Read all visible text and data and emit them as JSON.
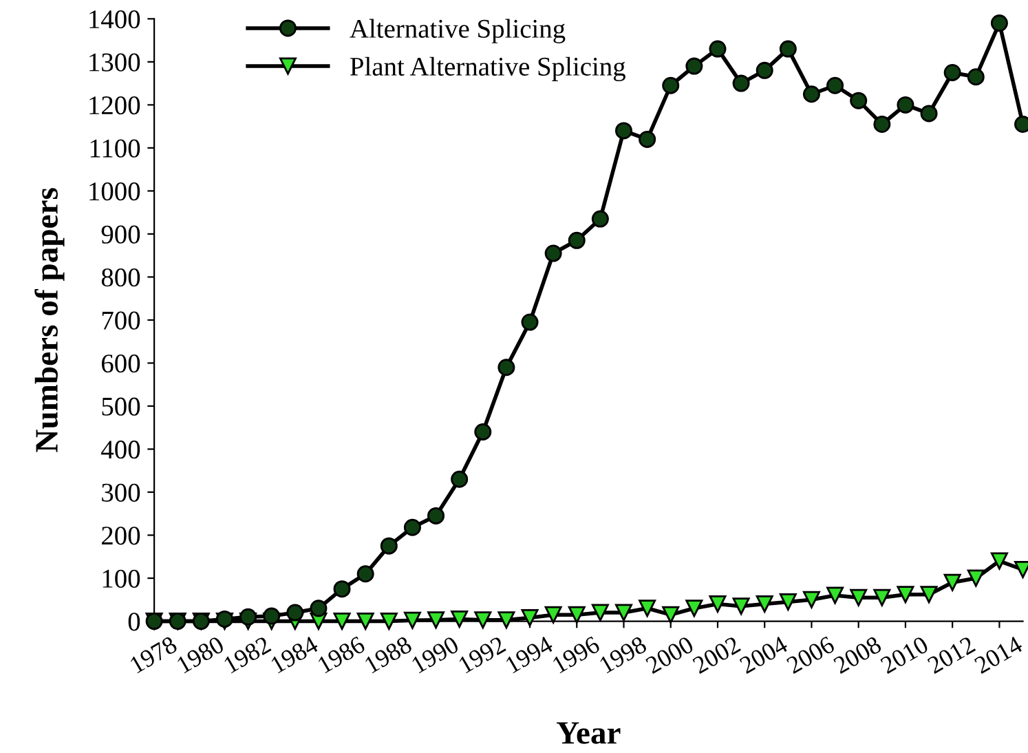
{
  "chart_data": {
    "type": "line",
    "xlabel": "Year",
    "ylabel": "Numbers of papers",
    "x": [
      1978,
      1979,
      1980,
      1981,
      1982,
      1983,
      1984,
      1985,
      1986,
      1987,
      1988,
      1989,
      1990,
      1991,
      1992,
      1993,
      1994,
      1995,
      1996,
      1997,
      1998,
      1999,
      2000,
      2001,
      2002,
      2003,
      2004,
      2005,
      2006,
      2007,
      2008,
      2009,
      2010,
      2011,
      2012,
      2013,
      2014,
      2015
    ],
    "series": [
      {
        "name": "Alternative Splicing",
        "color": "#0f3d12",
        "marker": "circle",
        "values": [
          0,
          0,
          0,
          5,
          10,
          12,
          20,
          30,
          75,
          110,
          175,
          218,
          245,
          330,
          440,
          590,
          695,
          855,
          885,
          935,
          1140,
          1120,
          1245,
          1290,
          1330,
          1250,
          1280,
          1330,
          1225,
          1245,
          1210,
          1155,
          1200,
          1180,
          1275,
          1265,
          1390,
          1155
        ]
      },
      {
        "name": "Plant Alternative Splicing",
        "color": "#33e02a",
        "marker": "triangle",
        "values": [
          0,
          0,
          0,
          0,
          0,
          0,
          0,
          0,
          0,
          0,
          0,
          2,
          3,
          5,
          3,
          3,
          8,
          15,
          15,
          20,
          20,
          30,
          15,
          30,
          40,
          35,
          40,
          45,
          50,
          60,
          55,
          55,
          62,
          62,
          90,
          100,
          140,
          120
        ]
      }
    ],
    "xlim": [
      1978,
      2015
    ],
    "xticks": [
      1978,
      1980,
      1982,
      1984,
      1986,
      1988,
      1990,
      1992,
      1994,
      1996,
      1998,
      2000,
      2002,
      2004,
      2006,
      2008,
      2010,
      2012,
      2014
    ],
    "ylim": [
      0,
      1400
    ],
    "yticks": [
      0,
      100,
      200,
      300,
      400,
      500,
      600,
      700,
      800,
      900,
      1000,
      1100,
      1200,
      1300,
      1400
    ],
    "grid": false,
    "legend": "top left",
    "line_style": "solid"
  }
}
